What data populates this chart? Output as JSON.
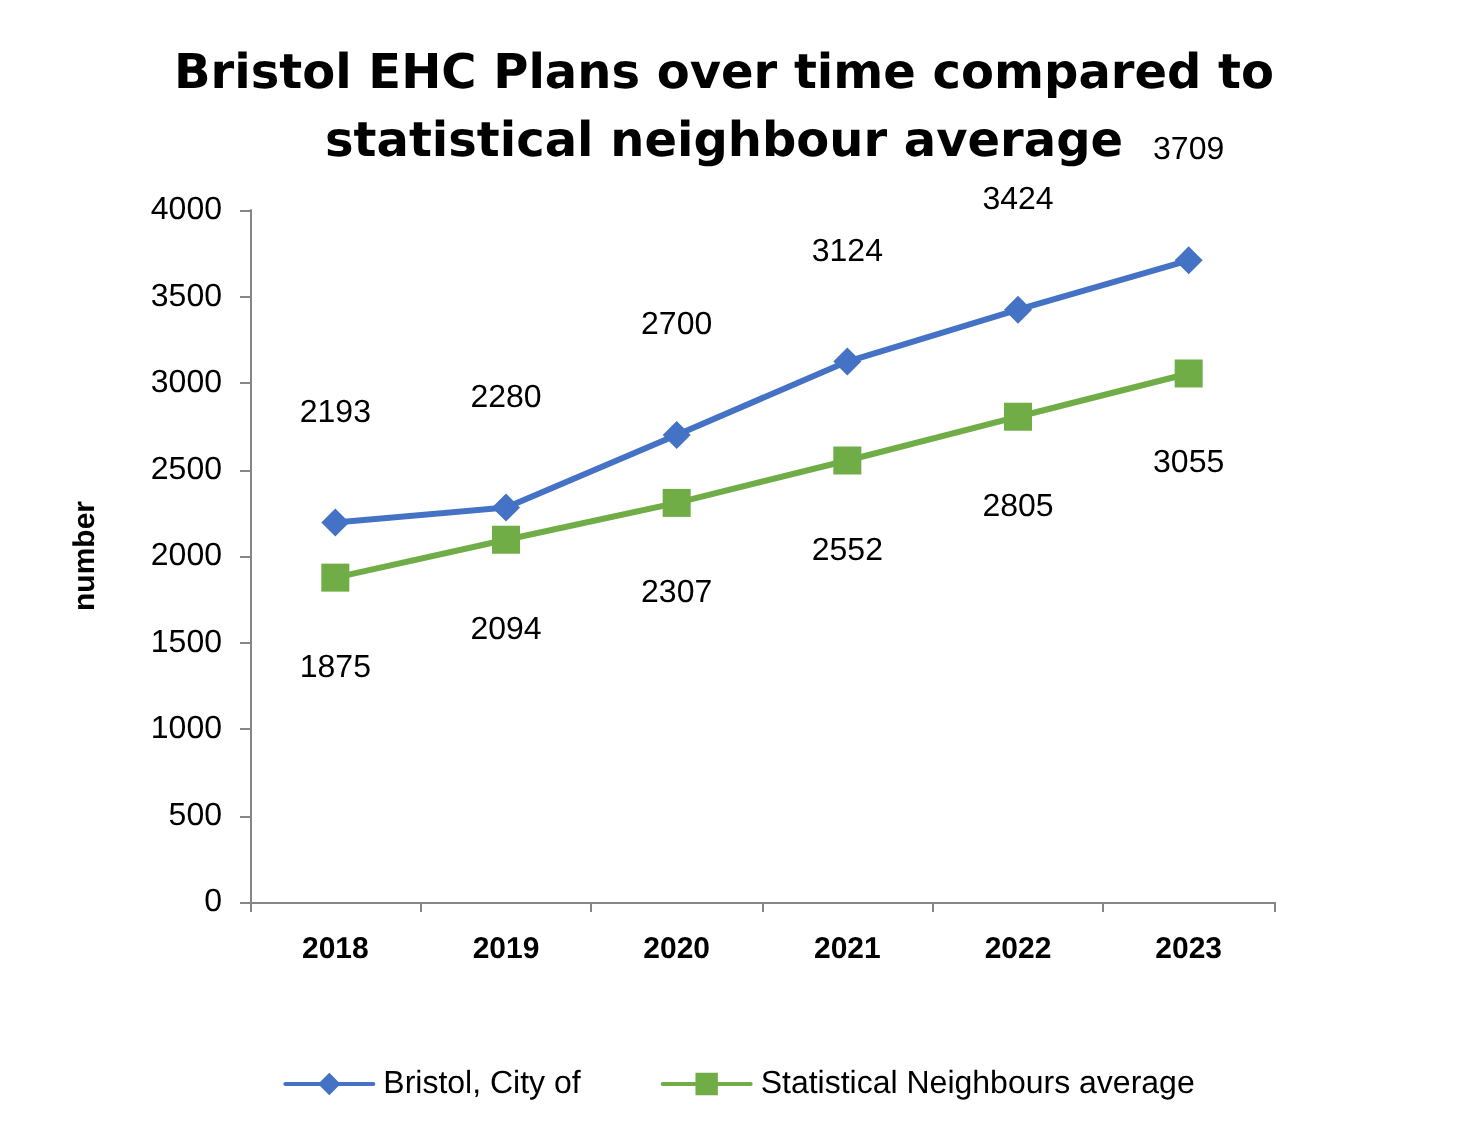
{
  "chart_data": {
    "type": "line",
    "title": "Bristol EHC Plans over time compared to\nstatistical neighbour average",
    "ylabel": "number",
    "categories": [
      "2018",
      "2019",
      "2020",
      "2021",
      "2022",
      "2023"
    ],
    "series": [
      {
        "name": "Bristol, City of",
        "color": "#4472c4",
        "marker": "diamond",
        "values": [
          2193,
          2280,
          2700,
          3124,
          3424,
          3709
        ]
      },
      {
        "name": "Statistical Neighbours average",
        "color": "#70ad47",
        "marker": "square",
        "values": [
          1875,
          2094,
          2307,
          2552,
          2805,
          3055
        ]
      }
    ],
    "ylim": [
      0,
      4000
    ],
    "yticks": [
      0,
      500,
      1000,
      1500,
      2000,
      2500,
      3000,
      3500,
      4000
    ],
    "data_labels": true,
    "legend": "bottom"
  }
}
